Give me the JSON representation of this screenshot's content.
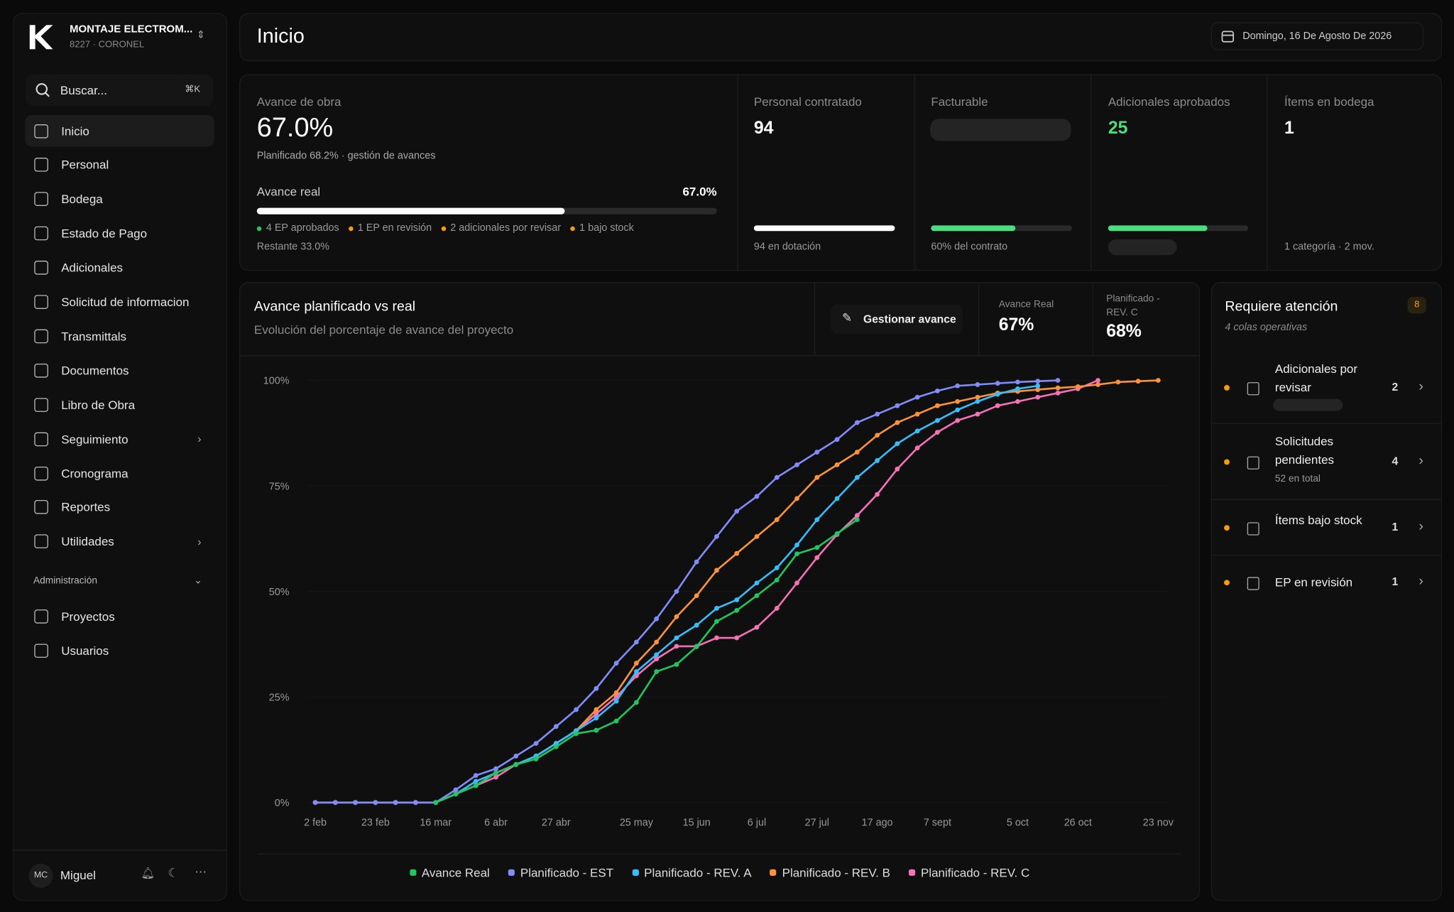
{
  "sidebar": {
    "company": "MONTAJE ELECTROM...",
    "project": "8227 · CORONEL",
    "search": "Buscar...",
    "shortcut": "⌘K",
    "nav": [
      "Inicio",
      "Personal",
      "Bodega",
      "Estado de Pago",
      "Adicionales",
      "Solicitud de informacion",
      "Transmittals",
      "Documentos",
      "Libro de Obra",
      "Seguimiento",
      "Cronograma",
      "Reportes",
      "Utilidades"
    ],
    "section": "Administración",
    "admin_nav": [
      "Proyectos",
      "Usuarios"
    ],
    "user": {
      "initials": "MC",
      "name": "Miguel"
    }
  },
  "header": {
    "title": "Inicio",
    "date": "Domingo, 16 De Agosto De 2026"
  },
  "progress_card": {
    "label": "Avance de obra",
    "value": "67.0%",
    "subtitle": "Planificado 68.2% · gestión de avances",
    "bar_label": "Avance real",
    "bar_value_label": "67.0%",
    "bar_value": 67,
    "chips": [
      {
        "text": "4 EP aprobados",
        "color": "#22c55e"
      },
      {
        "text": "1 EP en revisión",
        "color": "#f59e0b"
      },
      {
        "text": "2 adicionales por revisar",
        "color": "#f59e0b"
      },
      {
        "text": "1 bajo stock",
        "color": "#f59e0b"
      }
    ],
    "remaining": "Restante 33.0%"
  },
  "stats": [
    {
      "label": "Personal contratado",
      "value": "94",
      "bar": 100,
      "note": "94 en dotación"
    },
    {
      "label": "Facturable",
      "bar": 60,
      "note": "60% del contrato"
    },
    {
      "label": "Adicionales aprobados",
      "value": "25",
      "bar": 71
    },
    {
      "label": "Ítems en bodega",
      "value": "1",
      "note": "1 categoría · 2 mov."
    }
  ],
  "chart": {
    "type": "line",
    "title": "Avance planificado vs real",
    "subtitle": "Evolución del porcentaje de avance del proyecto",
    "button": "Gestionar avance",
    "kpis": [
      {
        "label": "Avance Real",
        "value": "67%"
      },
      {
        "label": "Planificado - REV. C",
        "value": "68%"
      }
    ],
    "categories": [
      "2 feb",
      null,
      null,
      "23 feb",
      null,
      null,
      "16 mar",
      null,
      null,
      "6 abr",
      null,
      null,
      "27 abr",
      null,
      null,
      null,
      "25 may",
      null,
      null,
      "15 jun",
      null,
      null,
      "6 jul",
      null,
      null,
      "27 jul",
      null,
      null,
      "17 ago",
      null,
      null,
      "7 sept",
      null,
      null,
      null,
      "5 oct",
      null,
      null,
      "26 oct",
      null,
      null,
      null,
      "23 nov"
    ],
    "ylim": [
      0,
      100
    ],
    "yticks": [
      {
        "value": 0,
        "label": "0%"
      },
      {
        "value": 25,
        "label": "25%"
      },
      {
        "value": 50,
        "label": "50%"
      },
      {
        "value": 75,
        "label": "75%"
      },
      {
        "value": 100,
        "label": "100%"
      }
    ],
    "grid": true,
    "series": [
      {
        "name": "Avance Real",
        "color": "#22c55e",
        "values": [
          null,
          null,
          null,
          null,
          null,
          null,
          0,
          2,
          4,
          7,
          9,
          10.3,
          13.2,
          16.3,
          17.1,
          19.3,
          23.7,
          31,
          32.7,
          36.9,
          42.9,
          45.5,
          49,
          52.7,
          58.9,
          60.4,
          63.7,
          67,
          null,
          null,
          null,
          null,
          null,
          null,
          null,
          null,
          null,
          null,
          null,
          null,
          null,
          null,
          null
        ]
      },
      {
        "name": "Planificado - EST",
        "color": "#818cf8",
        "values": [
          0,
          0,
          0,
          0,
          0,
          0,
          0,
          3,
          6.4,
          8,
          11,
          14,
          18,
          22,
          27,
          33,
          38,
          43.5,
          50,
          57,
          63,
          69,
          72.5,
          77,
          80,
          83,
          86,
          90,
          92,
          94,
          96,
          97.5,
          98.7,
          99,
          99.3,
          99.6,
          99.8,
          100,
          null,
          null,
          null,
          null,
          null
        ]
      },
      {
        "name": "Planificado - REV. A",
        "color": "#38bdf8",
        "values": [
          0,
          0,
          0,
          0,
          0,
          0,
          0,
          2,
          5,
          7,
          9,
          11,
          14,
          17,
          20,
          24,
          31,
          35,
          39,
          42,
          46,
          48,
          52,
          55.6,
          61,
          67,
          72,
          77,
          81,
          85,
          88,
          90.5,
          93,
          95,
          96.7,
          98,
          98.7,
          null,
          null,
          null,
          null,
          null,
          null
        ]
      },
      {
        "name": "Planificado - REV. B",
        "color": "#fb923c",
        "values": [
          0,
          0,
          0,
          0,
          0,
          0,
          0,
          2,
          4,
          7,
          9,
          11,
          14,
          17,
          22,
          26,
          33,
          38,
          44,
          49,
          55,
          59,
          63,
          67,
          72,
          77,
          80,
          83,
          87,
          90,
          92,
          94,
          95,
          96,
          97,
          97.4,
          97.8,
          98.2,
          98.5,
          99,
          99.6,
          99.8,
          100
        ]
      },
      {
        "name": "Planificado - REV. C",
        "color": "#f472b6",
        "values": [
          0,
          0,
          0,
          0,
          0,
          0,
          0,
          2,
          4,
          6,
          9,
          11,
          14,
          17,
          21,
          25,
          30,
          34,
          37,
          37,
          39,
          39,
          41.5,
          46,
          52,
          58,
          63.5,
          68,
          73,
          79,
          84,
          87.7,
          90.5,
          92,
          94,
          95,
          96,
          97,
          98,
          100,
          null,
          null,
          null
        ]
      }
    ]
  },
  "attention": {
    "title": "Requiere atención",
    "badge": "8",
    "subtitle": "4 colas operativas",
    "items": [
      {
        "label": "Adicionales por revisar",
        "count": 2
      },
      {
        "label": "Solicitudes pendientes",
        "count": 4,
        "note": "52 en total"
      },
      {
        "label": "Ítems bajo stock",
        "count": 1
      },
      {
        "label": "EP en revisión",
        "count": 1
      }
    ]
  }
}
